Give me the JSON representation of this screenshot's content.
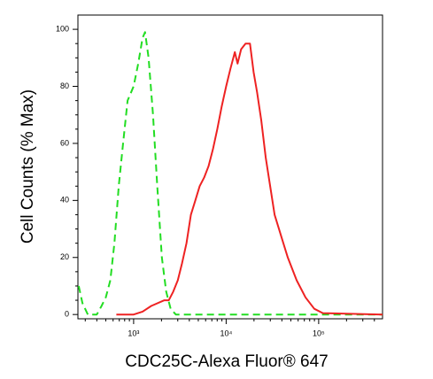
{
  "chart_data": {
    "type": "line",
    "log_x": true,
    "x_label": "CDC25C-Alexa Fluor® 647",
    "y_label": "Cell Counts (% Max)",
    "xlim": [
      250,
      490000
    ],
    "ylim": [
      -1.5,
      105
    ],
    "xticks": [
      {
        "value": 1000,
        "label": "10³"
      },
      {
        "value": 10000,
        "label": "10⁴"
      },
      {
        "value": 100000,
        "label": "10⁵"
      }
    ],
    "x_minor_ticks": [
      300,
      400,
      500,
      600,
      700,
      800,
      900,
      2000,
      3000,
      4000,
      5000,
      6000,
      7000,
      8000,
      9000,
      20000,
      30000,
      40000,
      50000,
      60000,
      70000,
      80000,
      90000,
      200000,
      300000,
      400000
    ],
    "yticks": [
      0,
      20,
      40,
      60,
      80,
      100
    ],
    "y_minor_ticks": [
      5,
      10,
      15,
      25,
      30,
      35,
      45,
      50,
      55,
      65,
      70,
      75,
      85,
      90,
      95
    ],
    "series": [
      {
        "color": "#22dd22",
        "dash": true,
        "x": [
          255,
          280,
          320,
          400,
          450,
          500,
          560,
          620,
          690,
          770,
          860,
          1000,
          1120,
          1250,
          1330,
          1450,
          1620,
          1800,
          2020,
          2250,
          2510,
          2860,
          490000
        ],
        "values": [
          10,
          4,
          0,
          0,
          3,
          6,
          12,
          25,
          45,
          60,
          75,
          80,
          88,
          97,
          99,
          90,
          70,
          45,
          20,
          8,
          2,
          0,
          0
        ]
      },
      {
        "color": "#ee2222",
        "dash": false,
        "x": [
          650,
          1000,
          1250,
          1550,
          2150,
          2400,
          2680,
          3000,
          3340,
          3730,
          4160,
          4640,
          5180,
          5780,
          6450,
          7200,
          8030,
          8960,
          10000,
          11100,
          12400,
          13300,
          14500,
          16200,
          18100,
          19800,
          21600,
          24000,
          26800,
          29900,
          33400,
          39700,
          46400,
          57800,
          72000,
          89600,
          111000,
          490000
        ],
        "values": [
          0,
          0,
          1,
          3,
          5,
          5,
          8,
          12,
          18,
          25,
          35,
          40,
          45,
          48,
          52,
          58,
          65,
          73,
          80,
          86,
          92,
          88,
          93,
          95,
          95,
          85,
          78,
          68,
          55,
          45,
          35,
          27,
          20,
          12,
          6,
          2,
          0.5,
          0
        ]
      }
    ]
  }
}
